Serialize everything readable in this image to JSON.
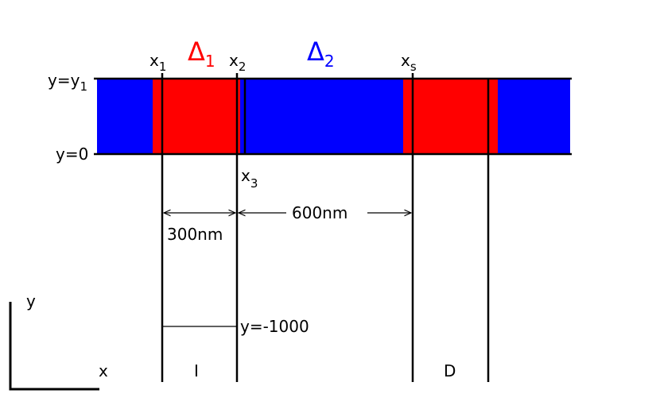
{
  "labels": {
    "delta1": {
      "base": "Δ",
      "sub": "1"
    },
    "delta2": {
      "base": "Δ",
      "sub": "2"
    },
    "x1": {
      "base": "x",
      "sub": "1"
    },
    "x2": {
      "base": "x",
      "sub": "2"
    },
    "xs": {
      "base": "x",
      "sub": "s"
    },
    "x3": {
      "base": "x",
      "sub": "3"
    },
    "y_top": {
      "base": "y=y",
      "sub": "1"
    },
    "y_zero": "y=0",
    "width_300": "300nm",
    "width_600": "600nm",
    "y_bottom": "y=-1000",
    "region_i": "I",
    "region_d": "D",
    "axis_y": "y",
    "axis_x": "x"
  }
}
